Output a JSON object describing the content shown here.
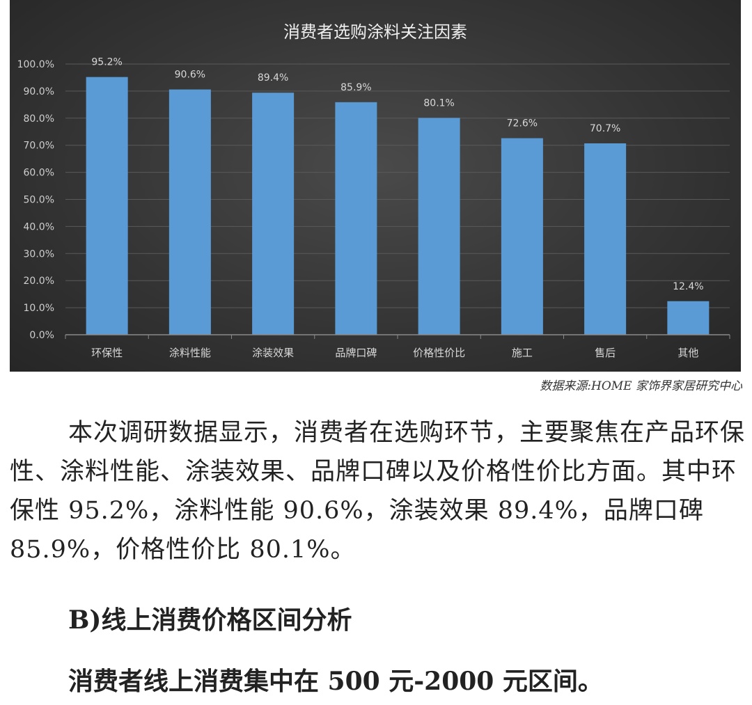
{
  "chart_data": {
    "type": "bar",
    "title": "消费者选购涂料关注因素",
    "categories": [
      "环保性",
      "涂料性能",
      "涂装效果",
      "品牌口碑",
      "价格性价比",
      "施工",
      "售后",
      "其他"
    ],
    "values": [
      95.2,
      90.6,
      89.4,
      85.9,
      80.1,
      72.6,
      70.7,
      12.4
    ],
    "value_labels": [
      "95.2%",
      "90.6%",
      "89.4%",
      "85.9%",
      "80.1%",
      "72.6%",
      "70.7%",
      "12.4%"
    ],
    "yticks": [
      "0.0%",
      "10.0%",
      "20.0%",
      "30.0%",
      "40.0%",
      "50.0%",
      "60.0%",
      "70.0%",
      "80.0%",
      "90.0%",
      "100.0%"
    ],
    "ylim": [
      0,
      100
    ],
    "grid": true,
    "bar_color": "#5b9bd5",
    "background": "#3a3a3a"
  },
  "source": "数据来源:HOME 家饰界家居研究中心",
  "paragraph": "本次调研数据显示，消费者在选购环节，主要聚焦在产品环保性、涂料性能、涂装效果、品牌口碑以及价格性价比方面。其中环保性 95.2%，涂料性能 90.6%，涂装效果 89.4%，品牌口碑 85.9%，价格性价比 80.1%。",
  "heading": "B)线上消费价格区间分析",
  "subline": "消费者线上消费集中在 500 元-2000 元区间。"
}
